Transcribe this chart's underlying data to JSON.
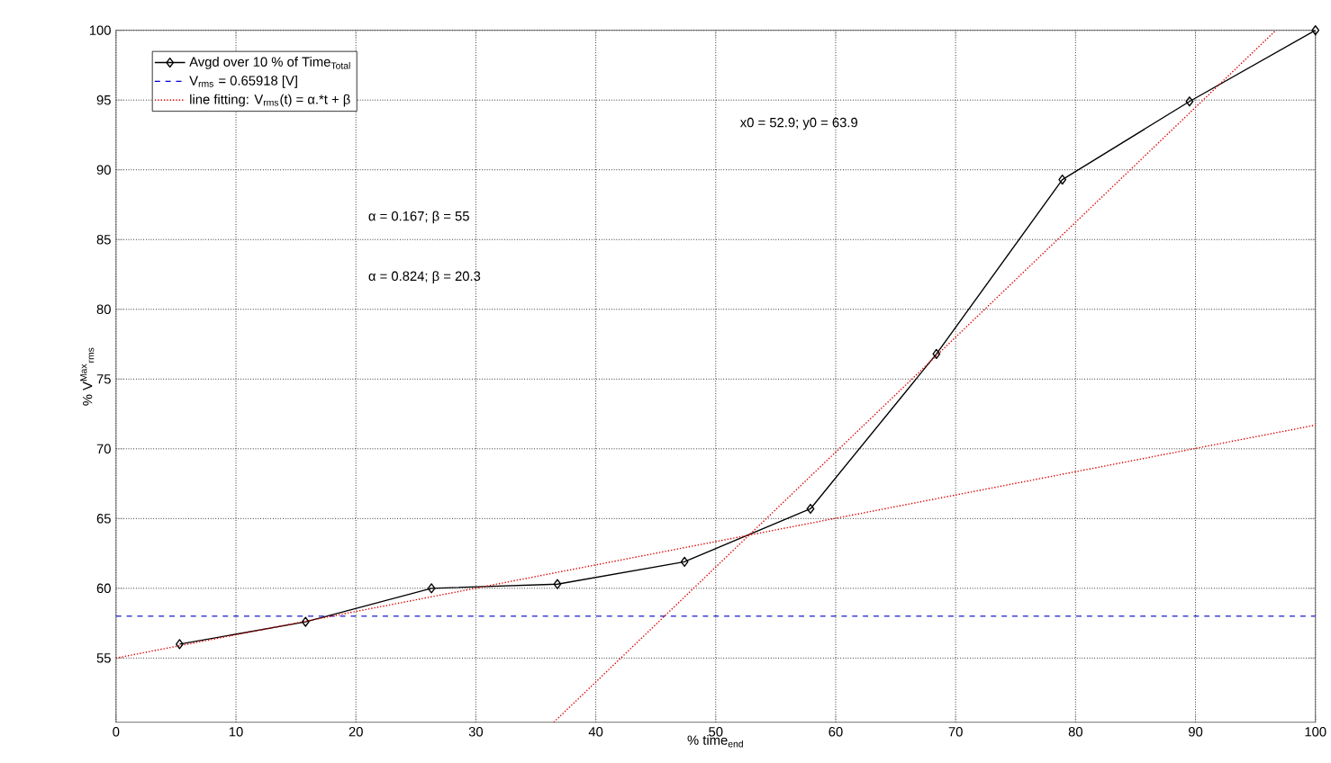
{
  "chart_data": {
    "type": "line",
    "xlabel": "% time$_{end}$",
    "ylabel": "% V$^{Max}$$_{rms}$",
    "xlim": [
      0,
      100
    ],
    "ylim": [
      50.4,
      100
    ],
    "xticks": [
      0,
      10,
      20,
      30,
      40,
      50,
      60,
      70,
      80,
      90,
      100
    ],
    "yticks": [
      55,
      60,
      65,
      70,
      75,
      80,
      85,
      90,
      95,
      100
    ],
    "grid": true,
    "legend": "top left",
    "annotations": [
      "α = 0.167;   β = 55",
      "α = 0.824;   β = 20.3",
      "x0 = 52.9;   y0 = 63.9"
    ],
    "series": [
      {
        "name": "Avgd over 10 % of Time$_{Total}$",
        "color": "#000000",
        "marker": "diamond",
        "line_style": "solid",
        "x": [
          5.3,
          15.8,
          26.3,
          36.8,
          47.4,
          57.9,
          68.4,
          78.9,
          89.5,
          100
        ],
        "values": [
          56.0,
          57.6,
          60.0,
          60.3,
          61.9,
          65.7,
          76.8,
          89.3,
          94.9,
          100
        ]
      },
      {
        "name": "V$_{rms}$ = 0.65918 [V]",
        "color": "#0000cc",
        "marker": "none",
        "line_style": "dashed",
        "x": [
          0,
          100
        ],
        "values": [
          58,
          58
        ]
      },
      {
        "name": "line fitting: V$_{rms}$(t) = α.*t + β",
        "color": "#dd0000",
        "marker": "none",
        "line_style": "dotted",
        "x": [
          0,
          100
        ],
        "values": [
          55,
          71.7
        ]
      },
      {
        "color": "#dd0000",
        "marker": "none",
        "line_style": "dotted",
        "x": [
          36.5,
          96.7
        ],
        "values": [
          50.4,
          100
        ]
      }
    ]
  }
}
